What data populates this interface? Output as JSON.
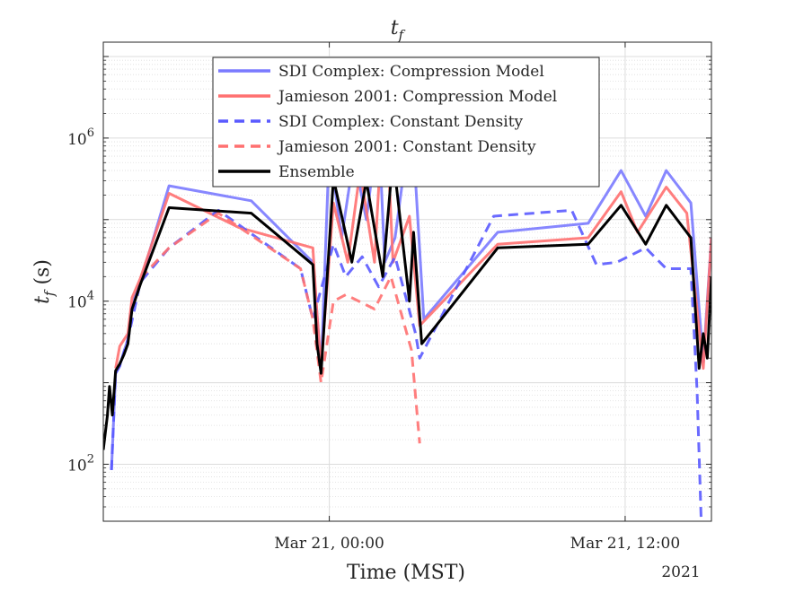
{
  "chart_data": {
    "type": "line",
    "title": "t_f",
    "title_main": "t",
    "title_sub": "f",
    "xlabel": "Time (MST)",
    "ylabel": "t_f (s)",
    "ylabel_main": "t",
    "ylabel_sub": "f",
    "ylabel_unit": " (s)",
    "year_label": "2021",
    "y_scale": "log",
    "ylim": [
      20,
      15000000
    ],
    "xlim": [
      "2021-03-20T14:50",
      "2021-03-21T15:30"
    ],
    "grid": "on",
    "x_ticks": [
      {
        "at": "2021-03-21T00:00",
        "label": "Mar 21, 00:00"
      },
      {
        "at": "2021-03-21T12:00",
        "label": "Mar 21, 12:00"
      }
    ],
    "y_ticks": [
      {
        "value": 100,
        "label_base": "10",
        "label_exp": "2"
      },
      {
        "value": 10000,
        "label_base": "10",
        "label_exp": "4"
      },
      {
        "value": 1000000,
        "label_base": "10",
        "label_exp": "6"
      }
    ],
    "legend_position": "top-center",
    "series": [
      {
        "name": "SDI Complex: Compression Model",
        "color": "#7a7aff",
        "style": "solid",
        "points": [
          [
            "2021-03-20T15:10",
            85
          ],
          [
            "2021-03-20T15:20",
            1300
          ],
          [
            "2021-03-20T15:30",
            1600
          ],
          [
            "2021-03-20T15:40",
            2400
          ],
          [
            "2021-03-20T15:50",
            3400
          ],
          [
            "2021-03-20T16:00",
            9000
          ],
          [
            "2021-03-20T16:20",
            17000
          ],
          [
            "2021-03-20T17:30",
            260000
          ],
          [
            "2021-03-20T20:50",
            170000
          ],
          [
            "2021-03-20T23:20",
            30000
          ],
          [
            "2021-03-20T23:30",
            7000
          ],
          [
            "2021-03-20T23:40",
            1400
          ],
          [
            "2021-03-21T00:00",
            800000
          ],
          [
            "2021-03-21T00:30",
            60000
          ],
          [
            "2021-03-21T01:00",
            600000
          ],
          [
            "2021-03-21T01:30",
            100000
          ],
          [
            "2021-03-21T02:00",
            1500000
          ],
          [
            "2021-03-21T02:15",
            30000
          ],
          [
            "2021-03-21T02:40",
            60000
          ],
          [
            "2021-03-21T03:20",
            2000000
          ],
          [
            "2021-03-21T03:50",
            6000
          ],
          [
            "2021-03-21T06:50",
            70000
          ],
          [
            "2021-03-21T10:30",
            90000
          ],
          [
            "2021-03-21T11:50",
            400000
          ],
          [
            "2021-03-21T12:50",
            110000
          ],
          [
            "2021-03-21T13:40",
            400000
          ],
          [
            "2021-03-21T14:40",
            160000
          ],
          [
            "2021-03-21T15:10",
            1800
          ],
          [
            "2021-03-21T15:30",
            60000
          ]
        ]
      },
      {
        "name": "Jamieson 2001: Compression Model",
        "color": "#ff7070",
        "style": "solid",
        "points": [
          [
            "2021-03-20T15:20",
            1500
          ],
          [
            "2021-03-20T15:30",
            2800
          ],
          [
            "2021-03-20T15:50",
            4000
          ],
          [
            "2021-03-20T16:00",
            11000
          ],
          [
            "2021-03-20T16:20",
            19000
          ],
          [
            "2021-03-20T17:30",
            210000
          ],
          [
            "2021-03-20T20:20",
            80000
          ],
          [
            "2021-03-20T23:20",
            45000
          ],
          [
            "2021-03-20T23:30",
            7000
          ],
          [
            "2021-03-20T23:40",
            1600
          ],
          [
            "2021-03-21T00:10",
            160000
          ],
          [
            "2021-03-21T00:45",
            30000
          ],
          [
            "2021-03-21T01:15",
            400000
          ],
          [
            "2021-03-21T01:50",
            30000
          ],
          [
            "2021-03-21T02:15",
            5000000
          ],
          [
            "2021-03-21T02:35",
            30000
          ],
          [
            "2021-03-21T03:15",
            110000
          ],
          [
            "2021-03-21T03:40",
            5000
          ],
          [
            "2021-03-21T06:50",
            50000
          ],
          [
            "2021-03-21T10:30",
            60000
          ],
          [
            "2021-03-21T11:50",
            220000
          ],
          [
            "2021-03-21T12:30",
            70000
          ],
          [
            "2021-03-21T13:40",
            250000
          ],
          [
            "2021-03-21T14:30",
            120000
          ],
          [
            "2021-03-21T15:10",
            1500
          ],
          [
            "2021-03-21T15:30",
            60000
          ]
        ]
      },
      {
        "name": "SDI Complex: Constant Density",
        "color": "#5a5aff",
        "style": "dashed",
        "points": [
          [
            "2021-03-20T15:10",
            85
          ],
          [
            "2021-03-20T15:20",
            1300
          ],
          [
            "2021-03-20T15:30",
            1600
          ],
          [
            "2021-03-20T15:50",
            3400
          ],
          [
            "2021-03-20T16:20",
            17000
          ],
          [
            "2021-03-20T17:30",
            45000
          ],
          [
            "2021-03-20T19:30",
            130000
          ],
          [
            "2021-03-20T22:50",
            25000
          ],
          [
            "2021-03-20T23:20",
            6000
          ],
          [
            "2021-03-21T00:10",
            50000
          ],
          [
            "2021-03-21T00:40",
            20000
          ],
          [
            "2021-03-21T01:20",
            35000
          ],
          [
            "2021-03-21T02:00",
            15000
          ],
          [
            "2021-03-21T02:40",
            35000
          ],
          [
            "2021-03-21T03:30",
            4000
          ],
          [
            "2021-03-21T03:40",
            2000
          ],
          [
            "2021-03-21T06:40",
            110000
          ],
          [
            "2021-03-21T09:50",
            130000
          ],
          [
            "2021-03-21T10:50",
            28000
          ],
          [
            "2021-03-21T11:40",
            30000
          ],
          [
            "2021-03-21T12:50",
            45000
          ],
          [
            "2021-03-21T13:40",
            25000
          ],
          [
            "2021-03-21T14:40",
            25000
          ],
          [
            "2021-03-21T14:55",
            800
          ],
          [
            "2021-03-21T15:05",
            20
          ]
        ]
      },
      {
        "name": "Jamieson 2001: Constant Density",
        "color": "#ff7070",
        "style": "dashed",
        "points": [
          [
            "2021-03-20T16:20",
            19000
          ],
          [
            "2021-03-20T17:30",
            45000
          ],
          [
            "2021-03-20T19:30",
            120000
          ],
          [
            "2021-03-20T22:50",
            25000
          ],
          [
            "2021-03-20T23:20",
            6000
          ],
          [
            "2021-03-20T23:40",
            1000
          ],
          [
            "2021-03-21T00:10",
            10000
          ],
          [
            "2021-03-21T00:40",
            12000
          ],
          [
            "2021-03-21T01:50",
            8000
          ],
          [
            "2021-03-21T02:30",
            20000
          ],
          [
            "2021-03-21T03:20",
            2500
          ],
          [
            "2021-03-21T03:40",
            180
          ]
        ]
      },
      {
        "name": "Ensemble",
        "color": "#000000",
        "style": "solid",
        "points": [
          [
            "2021-03-20T14:50",
            150
          ],
          [
            "2021-03-20T15:00",
            400
          ],
          [
            "2021-03-20T15:05",
            900
          ],
          [
            "2021-03-20T15:12",
            400
          ],
          [
            "2021-03-20T15:20",
            1400
          ],
          [
            "2021-03-20T15:30",
            1700
          ],
          [
            "2021-03-20T15:40",
            2200
          ],
          [
            "2021-03-20T15:50",
            3000
          ],
          [
            "2021-03-20T16:00",
            8000
          ],
          [
            "2021-03-20T16:20",
            16000
          ],
          [
            "2021-03-20T17:30",
            140000
          ],
          [
            "2021-03-20T20:50",
            120000
          ],
          [
            "2021-03-20T23:20",
            28000
          ],
          [
            "2021-03-20T23:30",
            3000
          ],
          [
            "2021-03-20T23:40",
            1300
          ],
          [
            "2021-03-21T00:10",
            320000
          ],
          [
            "2021-03-21T00:55",
            30000
          ],
          [
            "2021-03-21T01:30",
            300000
          ],
          [
            "2021-03-21T02:10",
            20000
          ],
          [
            "2021-03-21T02:35",
            600000
          ],
          [
            "2021-03-21T03:15",
            10000
          ],
          [
            "2021-03-21T03:25",
            70000
          ],
          [
            "2021-03-21T03:45",
            3000
          ],
          [
            "2021-03-21T06:50",
            45000
          ],
          [
            "2021-03-21T10:30",
            50000
          ],
          [
            "2021-03-21T11:50",
            150000
          ],
          [
            "2021-03-21T12:50",
            50000
          ],
          [
            "2021-03-21T13:40",
            150000
          ],
          [
            "2021-03-21T14:40",
            60000
          ],
          [
            "2021-03-21T15:00",
            1500
          ],
          [
            "2021-03-21T15:10",
            4000
          ],
          [
            "2021-03-21T15:20",
            2000
          ],
          [
            "2021-03-21T15:30",
            20000
          ]
        ]
      }
    ]
  }
}
